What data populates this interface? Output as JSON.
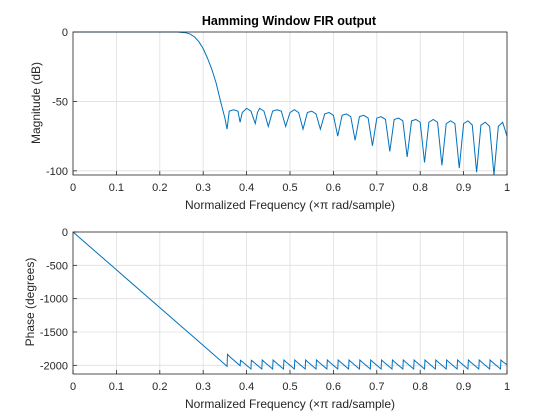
{
  "chart_data": [
    {
      "type": "line",
      "title": "Hamming Window FIR output",
      "xlabel": "Normalized Frequency  (×π rad/sample)",
      "ylabel": "Magnitude (dB)",
      "xlim": [
        0,
        1
      ],
      "ylim": [
        -103,
        0
      ],
      "xticks": [
        0,
        0.1,
        0.2,
        0.3,
        0.4,
        0.5,
        0.6,
        0.7,
        0.8,
        0.9,
        1
      ],
      "xtick_labels": [
        "0",
        "0.1",
        "0.2",
        "0.3",
        "0.4",
        "0.5",
        "0.6",
        "0.7",
        "0.8",
        "0.9",
        "1"
      ],
      "yticks": [
        0,
        -50,
        -100
      ],
      "ytick_labels": [
        "0",
        "-50",
        "-100"
      ],
      "grid": true,
      "series": [
        {
          "color": "#0072bd",
          "x": [
            0,
            0.05,
            0.1,
            0.15,
            0.2,
            0.24,
            0.26,
            0.27,
            0.28,
            0.29,
            0.3,
            0.31,
            0.32,
            0.33,
            0.34,
            0.35,
            0.355,
            0.36,
            0.37,
            0.38,
            0.385,
            0.39,
            0.4,
            0.41,
            0.42,
            0.425,
            0.43,
            0.44,
            0.45,
            0.46,
            0.47,
            0.48,
            0.49,
            0.5,
            0.51,
            0.52,
            0.53,
            0.54,
            0.55,
            0.56,
            0.57,
            0.58,
            0.59,
            0.6,
            0.61,
            0.62,
            0.63,
            0.64,
            0.65,
            0.66,
            0.67,
            0.68,
            0.69,
            0.7,
            0.71,
            0.72,
            0.73,
            0.74,
            0.75,
            0.76,
            0.77,
            0.78,
            0.79,
            0.8,
            0.81,
            0.82,
            0.83,
            0.84,
            0.85,
            0.86,
            0.87,
            0.88,
            0.89,
            0.9,
            0.91,
            0.92,
            0.93,
            0.94,
            0.95,
            0.96,
            0.97,
            0.98,
            0.99,
            1.0
          ],
          "y": [
            0,
            0,
            0,
            0,
            0,
            0,
            -0.5,
            -1.5,
            -3.5,
            -7,
            -12,
            -19,
            -27,
            -37,
            -50,
            -62,
            -70,
            -57,
            -56,
            -57,
            -65,
            -58,
            -55,
            -57,
            -66,
            -58,
            -55,
            -57,
            -68,
            -57,
            -56,
            -57,
            -68,
            -58,
            -56,
            -58,
            -70,
            -58,
            -57,
            -59,
            -70,
            -59,
            -58,
            -60,
            -75,
            -60,
            -59,
            -61,
            -78,
            -61,
            -60,
            -62,
            -82,
            -62,
            -61,
            -63,
            -86,
            -63,
            -62,
            -64,
            -90,
            -64,
            -63,
            -65,
            -94,
            -65,
            -63,
            -65,
            -96,
            -66,
            -64,
            -66,
            -98,
            -66,
            -64,
            -67,
            -101,
            -67,
            -65,
            -68,
            -103,
            -68,
            -65,
            -75
          ]
        }
      ]
    },
    {
      "type": "line",
      "xlabel": "Normalized Frequency  (×π rad/sample)",
      "ylabel": "Phase (degrees)",
      "xlim": [
        0,
        1
      ],
      "ylim": [
        -2130,
        0
      ],
      "xticks": [
        0,
        0.1,
        0.2,
        0.3,
        0.4,
        0.5,
        0.6,
        0.7,
        0.8,
        0.9,
        1
      ],
      "xtick_labels": [
        "0",
        "0.1",
        "0.2",
        "0.3",
        "0.4",
        "0.5",
        "0.6",
        "0.7",
        "0.8",
        "0.9",
        "1"
      ],
      "yticks": [
        0,
        -500,
        -1000,
        -1500,
        -2000
      ],
      "ytick_labels": [
        "0",
        "-500",
        "-1000",
        "-1500",
        "-2000"
      ],
      "grid": true,
      "series": [
        {
          "color": "#0072bd",
          "x": [
            0,
            0.1,
            0.2,
            0.3,
            0.355,
            0.356,
            0.362,
            0.385,
            0.386,
            0.39,
            0.41,
            0.411,
            0.415,
            0.435,
            0.436,
            0.44,
            0.46,
            0.461,
            0.465,
            0.485,
            0.486,
            0.49,
            0.51,
            0.511,
            0.515,
            0.535,
            0.536,
            0.54,
            0.56,
            0.561,
            0.565,
            0.585,
            0.586,
            0.59,
            0.61,
            0.611,
            0.615,
            0.635,
            0.636,
            0.64,
            0.66,
            0.661,
            0.665,
            0.685,
            0.686,
            0.69,
            0.71,
            0.711,
            0.715,
            0.735,
            0.736,
            0.74,
            0.76,
            0.761,
            0.765,
            0.785,
            0.786,
            0.79,
            0.81,
            0.811,
            0.815,
            0.835,
            0.836,
            0.84,
            0.86,
            0.861,
            0.865,
            0.885,
            0.886,
            0.89,
            0.91,
            0.911,
            0.915,
            0.935,
            0.936,
            0.94,
            0.96,
            0.961,
            0.965,
            0.985,
            0.986,
            0.99,
            1.0
          ],
          "y": [
            0,
            -567,
            -1134,
            -1701,
            -2015,
            -1835,
            -1875,
            -2005,
            -1925,
            -1945,
            -2055,
            -1925,
            -1945,
            -2055,
            -1920,
            -1945,
            -2055,
            -1920,
            -1945,
            -2055,
            -1920,
            -1945,
            -2055,
            -1920,
            -1945,
            -2055,
            -1920,
            -1945,
            -2055,
            -1920,
            -1945,
            -2055,
            -1920,
            -1945,
            -2055,
            -1920,
            -1945,
            -2055,
            -1920,
            -1945,
            -2055,
            -1920,
            -1945,
            -2055,
            -1920,
            -1945,
            -2055,
            -1920,
            -1945,
            -2055,
            -1920,
            -1945,
            -2055,
            -1920,
            -1945,
            -2055,
            -1920,
            -1945,
            -2055,
            -1920,
            -1945,
            -2055,
            -1920,
            -1945,
            -2055,
            -1920,
            -1945,
            -2055,
            -1920,
            -1945,
            -2055,
            -1920,
            -1945,
            -2055,
            -1920,
            -1945,
            -2055,
            -1920,
            -1945,
            -2055,
            -1920,
            -1945,
            -1990
          ]
        }
      ]
    }
  ]
}
